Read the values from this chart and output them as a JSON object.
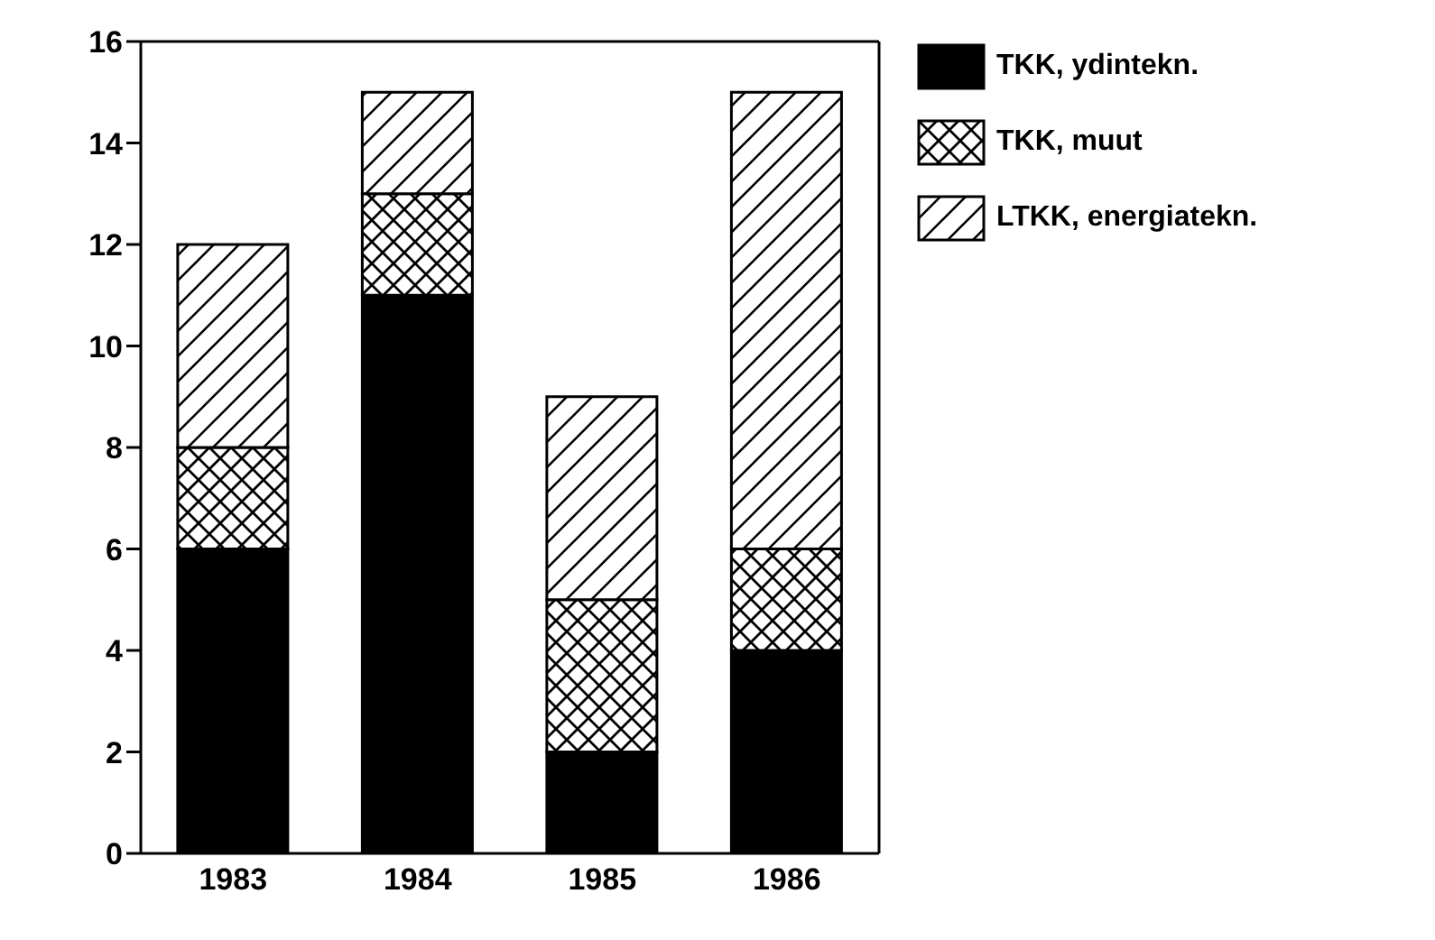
{
  "chart_data": {
    "type": "bar",
    "stacked": true,
    "categories": [
      "1983",
      "1984",
      "1985",
      "1986"
    ],
    "series": [
      {
        "name": "TKK, ydintekn.",
        "color": "#000000",
        "values": [
          6,
          11,
          2,
          4
        ]
      },
      {
        "name": "TKK, muut",
        "color": "#000000",
        "values": [
          2,
          2,
          3,
          2
        ]
      },
      {
        "name": "LTKK, energiatekn.",
        "color": "#000000",
        "values": [
          4,
          2,
          4,
          9
        ]
      }
    ],
    "ylim": [
      0,
      16
    ],
    "yticks": [
      0,
      2,
      4,
      6,
      8,
      10,
      12,
      14,
      16
    ],
    "grid": false,
    "legend": "top right"
  }
}
